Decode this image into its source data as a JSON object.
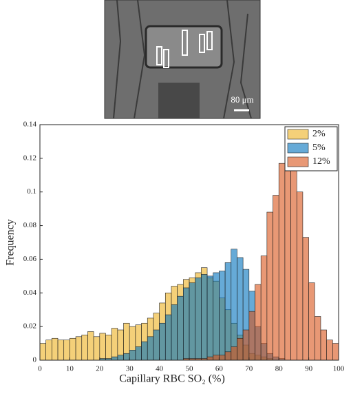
{
  "image": {
    "scale_label": "80 μm"
  },
  "chart_data": {
    "type": "histogram",
    "xlabel": "Capillary RBC SO₂ (%)",
    "ylabel": "Frequency",
    "bins": [
      0,
      2,
      4,
      6,
      8,
      10,
      12,
      14,
      16,
      18,
      20,
      22,
      24,
      26,
      28,
      30,
      32,
      34,
      36,
      38,
      40,
      42,
      44,
      46,
      48,
      50,
      52,
      54,
      56,
      58,
      60,
      62,
      64,
      66,
      68,
      70,
      72,
      74,
      76,
      78,
      80,
      82,
      84,
      86,
      88,
      90,
      92,
      94,
      96,
      98,
      100
    ],
    "series": [
      {
        "name": "2%",
        "color": "#EDB120",
        "values": [
          0.01,
          0.012,
          0.013,
          0.012,
          0.012,
          0.013,
          0.014,
          0.015,
          0.017,
          0.014,
          0.016,
          0.015,
          0.019,
          0.018,
          0.022,
          0.02,
          0.021,
          0.022,
          0.025,
          0.028,
          0.034,
          0.04,
          0.044,
          0.045,
          0.048,
          0.049,
          0.052,
          0.055,
          0.049,
          0.047,
          0.037,
          0.03,
          0.022,
          0.015,
          0.009,
          0.004,
          0.003,
          0.002,
          0.001,
          0,
          0,
          0,
          0,
          0,
          0,
          0,
          0,
          0,
          0,
          0
        ]
      },
      {
        "name": "5%",
        "color": "#0072BD",
        "values": [
          0,
          0,
          0,
          0,
          0,
          0,
          0,
          0,
          0,
          0,
          0.001,
          0.001,
          0.002,
          0.003,
          0.004,
          0.006,
          0.008,
          0.011,
          0.014,
          0.018,
          0.022,
          0.027,
          0.033,
          0.038,
          0.043,
          0.046,
          0.049,
          0.051,
          0.05,
          0.052,
          0.053,
          0.058,
          0.066,
          0.061,
          0.054,
          0.041,
          0.02,
          0.01,
          0.004,
          0.002,
          0.001,
          0,
          0,
          0,
          0,
          0,
          0,
          0,
          0,
          0
        ]
      },
      {
        "name": "12%",
        "color": "#D95319",
        "values": [
          0,
          0,
          0,
          0,
          0,
          0,
          0,
          0,
          0,
          0,
          0,
          0,
          0,
          0,
          0,
          0,
          0,
          0,
          0,
          0,
          0,
          0,
          0,
          0,
          0.001,
          0.001,
          0.001,
          0.001,
          0.002,
          0.003,
          0.003,
          0.005,
          0.008,
          0.013,
          0.018,
          0.029,
          0.045,
          0.062,
          0.088,
          0.098,
          0.117,
          0.138,
          0.123,
          0.1,
          0.073,
          0.046,
          0.026,
          0.018,
          0.012,
          0.01
        ]
      }
    ],
    "xlim": [
      0,
      100
    ],
    "xticks": [
      0,
      10,
      20,
      30,
      40,
      50,
      60,
      70,
      80,
      90,
      100
    ],
    "ylim": [
      0,
      0.14
    ],
    "yticks": [
      0,
      0.02,
      0.04,
      0.06,
      0.08,
      0.1,
      0.12,
      0.14
    ],
    "opacity": 0.6,
    "legend": "upper-right"
  }
}
